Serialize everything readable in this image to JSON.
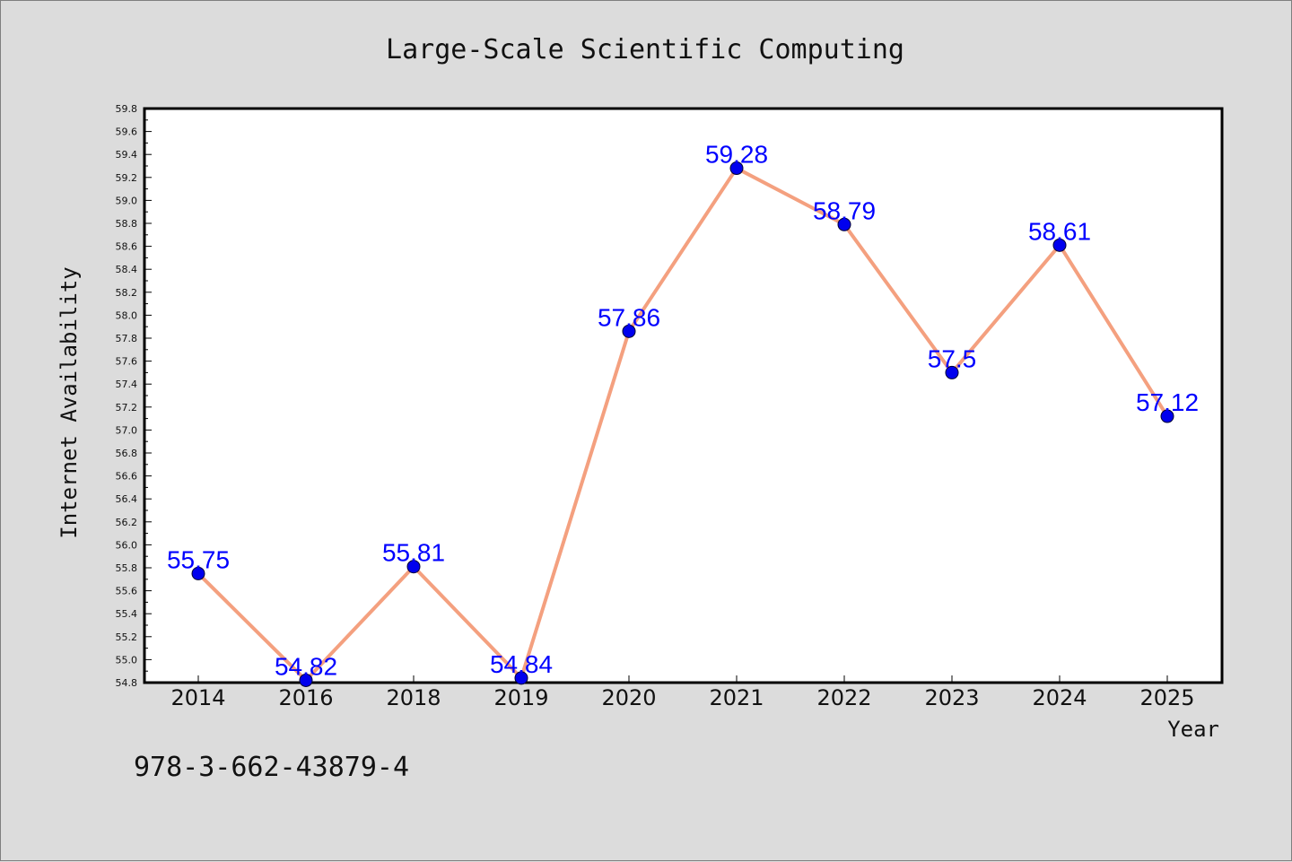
{
  "chart_data": {
    "type": "line",
    "title": "Large-Scale Scientific Computing",
    "xlabel": "Year",
    "ylabel": "Internet Availability",
    "categories": [
      "2014",
      "2016",
      "2018",
      "2019",
      "2020",
      "2021",
      "2022",
      "2023",
      "2024",
      "2025"
    ],
    "series": [
      {
        "values": [
          55.75,
          54.82,
          55.81,
          54.84,
          57.86,
          59.28,
          58.79,
          57.5,
          58.61,
          57.12
        ]
      }
    ],
    "data_labels": [
      "55.75",
      "54.82",
      "55.81",
      "54.84",
      "57.86",
      "59.28",
      "58.79",
      "57.5",
      "58.61",
      "57.12"
    ],
    "ylim": [
      54.8,
      59.8
    ],
    "ytick_step": 0.2,
    "ytick_labels": [
      "54.8",
      "55.0",
      "55.2",
      "55.4",
      "55.6",
      "55.8",
      "56.0",
      "56.2",
      "56.4",
      "56.6",
      "56.8",
      "57.0",
      "57.2",
      "57.4",
      "57.6",
      "57.8",
      "58.0",
      "58.2",
      "58.4",
      "58.6",
      "58.8",
      "59.0",
      "59.2",
      "59.4",
      "59.6",
      "59.8"
    ],
    "grid": false,
    "line_color": "#f4a07f",
    "marker_color": "#0000ee",
    "label_color": "#0000ff",
    "background": "#dcdcdc",
    "plot_background": "#ffffff"
  },
  "footnote": "978-3-662-43879-4"
}
